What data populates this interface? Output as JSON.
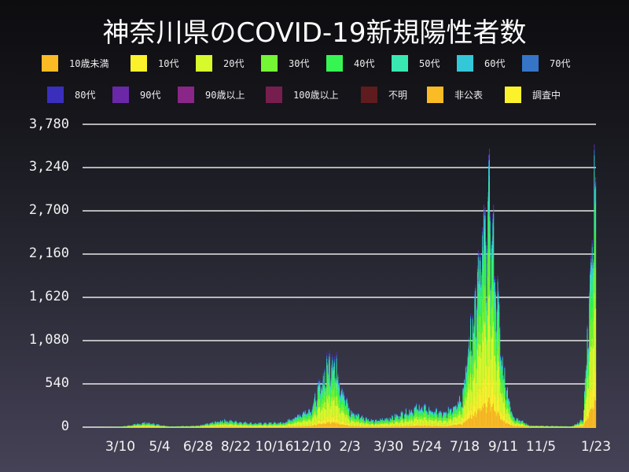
{
  "title": "神奈川県のCOVID-19新規陽性者数",
  "legend": [
    {
      "label": "10歳未満",
      "color": "#fbbb24"
    },
    {
      "label": "10代",
      "color": "#fbf22c"
    },
    {
      "label": "20代",
      "color": "#d6fa2c"
    },
    {
      "label": "30代",
      "color": "#74f634"
    },
    {
      "label": "40代",
      "color": "#36f552"
    },
    {
      "label": "50代",
      "color": "#39e8b0"
    },
    {
      "label": "60代",
      "color": "#33c8d8"
    },
    {
      "label": "70代",
      "color": "#3674c8"
    },
    {
      "label": "80代",
      "color": "#3a2fbd"
    },
    {
      "label": "90代",
      "color": "#6a28a8"
    },
    {
      "label": "90歳以上",
      "color": "#8a2688"
    },
    {
      "label": "100歳以上",
      "color": "#761f4e"
    },
    {
      "label": "不明",
      "color": "#5e1c1e"
    },
    {
      "label": "非公表",
      "color": "#fbbb24"
    },
    {
      "label": "調査中",
      "color": "#fbf22c"
    }
  ],
  "chart_data": {
    "type": "bar",
    "stacked": true,
    "title": "神奈川県のCOVID-19新規陽性者数",
    "xlabel": "",
    "ylabel": "",
    "ylim": [
      0,
      3780
    ],
    "yticks": [
      "0",
      "540",
      "1,080",
      "1,620",
      "2,160",
      "2,700",
      "3,240",
      "3,780"
    ],
    "ytick_values": [
      0,
      540,
      1080,
      1620,
      2160,
      2700,
      3240,
      3780
    ],
    "xticks": [
      "3/10",
      "5/4",
      "6/28",
      "8/22",
      "10/16",
      "12/10",
      "2/3",
      "3/30",
      "5/24",
      "7/18",
      "9/11",
      "11/5",
      "1/23"
    ],
    "grid": "horizontal",
    "legend_position": "top",
    "series_names": [
      "10歳未満",
      "10代",
      "20代",
      "30代",
      "40代",
      "50代",
      "60代",
      "70代",
      "80代",
      "90代",
      "90歳以上",
      "100歳以上",
      "不明",
      "非公表",
      "調査中"
    ],
    "approx_daily_totals_keypoints": [
      {
        "date": "2020-01-16",
        "value": 0
      },
      {
        "date": "2020-03-10",
        "value": 5
      },
      {
        "date": "2020-04-15",
        "value": 60
      },
      {
        "date": "2020-05-20",
        "value": 10
      },
      {
        "date": "2020-07-01",
        "value": 20
      },
      {
        "date": "2020-08-05",
        "value": 90
      },
      {
        "date": "2020-09-20",
        "value": 50
      },
      {
        "date": "2020-11-01",
        "value": 60
      },
      {
        "date": "2020-12-10",
        "value": 250
      },
      {
        "date": "2021-01-09",
        "value": 950
      },
      {
        "date": "2021-02-03",
        "value": 200
      },
      {
        "date": "2021-03-10",
        "value": 80
      },
      {
        "date": "2021-04-05",
        "value": 130
      },
      {
        "date": "2021-05-15",
        "value": 270
      },
      {
        "date": "2021-06-20",
        "value": 170
      },
      {
        "date": "2021-07-15",
        "value": 400
      },
      {
        "date": "2021-08-01",
        "value": 1500
      },
      {
        "date": "2021-08-24",
        "value": 2880
      },
      {
        "date": "2021-09-11",
        "value": 800
      },
      {
        "date": "2021-09-25",
        "value": 150
      },
      {
        "date": "2021-10-20",
        "value": 20
      },
      {
        "date": "2021-12-20",
        "value": 10
      },
      {
        "date": "2022-01-05",
        "value": 100
      },
      {
        "date": "2022-01-15",
        "value": 1800
      },
      {
        "date": "2022-01-23",
        "value": 3760
      }
    ]
  }
}
